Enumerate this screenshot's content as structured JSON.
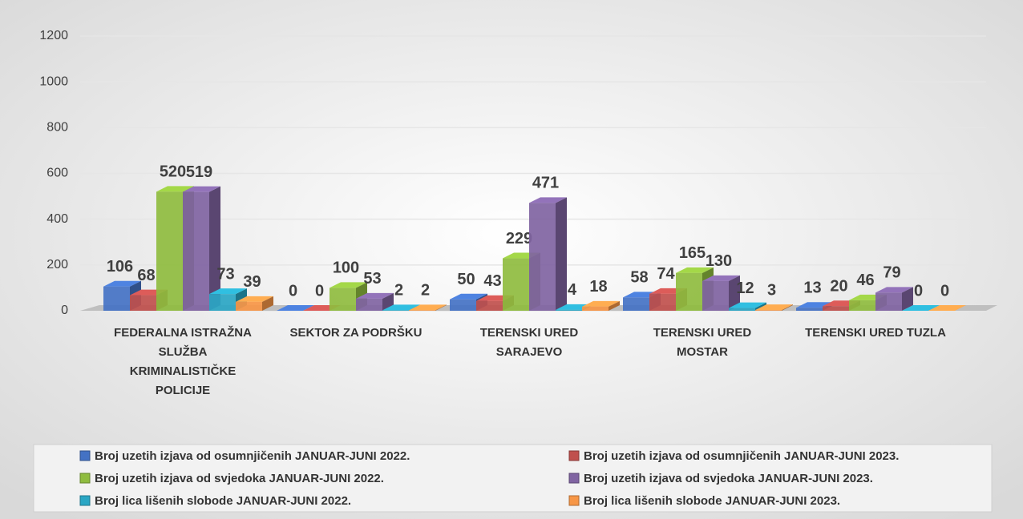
{
  "chart_data": {
    "type": "bar3d",
    "categories": [
      "FEDERALNA ISTRAŽNA SLUŽBA KRIMINALISTIČKE POLICIJE",
      "SEKTOR ZA PODRŠKU",
      "TERENSKI URED SARAJEVO",
      "TERENSKI URED MOSTAR",
      "TERENSKI URED TUZLA"
    ],
    "series": [
      {
        "name": "Broj uzetih izjava od osumnjičenih JANUAR-JUNI 2022.",
        "color": "#4472c4",
        "values": [
          106,
          0,
          50,
          58,
          13
        ]
      },
      {
        "name": "Broj uzetih izjava od osumnjičenih JANUAR-JUNI 2023.",
        "color": "#c0504d",
        "values": [
          68,
          0,
          43,
          74,
          20
        ]
      },
      {
        "name": "Broj uzetih izjava od svjedoka JANUAR-JUNI 2022.",
        "color": "#8fbc3f",
        "values": [
          520,
          100,
          229,
          165,
          46
        ]
      },
      {
        "name": "Broj uzetih izjava od svjedoka JANUAR-JUNI 2023.",
        "color": "#8064a2",
        "values": [
          519,
          53,
          471,
          130,
          79
        ]
      },
      {
        "name": "Broj lica lišenih slobode JANUAR-JUNI 2022.",
        "color": "#2aa6c4",
        "values": [
          73,
          2,
          4,
          12,
          0
        ]
      },
      {
        "name": "Broj lica lišenih slobode JANUAR-JUNI 2023.",
        "color": "#f79646",
        "values": [
          39,
          2,
          18,
          3,
          0
        ]
      }
    ],
    "ylim": [
      0,
      1200
    ],
    "yticks": [
      0,
      200,
      400,
      600,
      800,
      1000,
      1200
    ],
    "grid": true,
    "legend": "bottom"
  }
}
